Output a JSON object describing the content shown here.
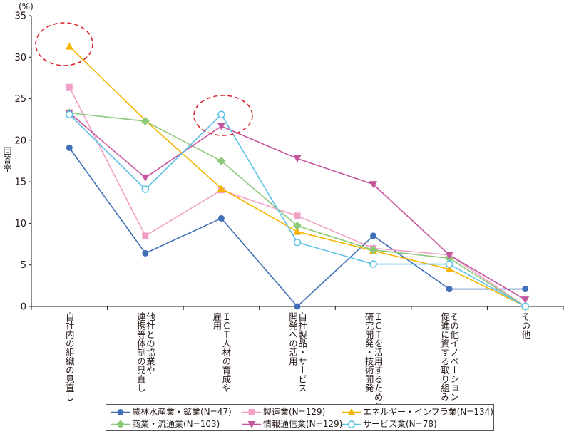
{
  "chart_data": {
    "type": "line",
    "unit_label": "(%)",
    "ylabel": "回答率",
    "ylim": [
      0,
      35
    ],
    "yticks": [
      0,
      5,
      10,
      15,
      20,
      25,
      30,
      35
    ],
    "grid": false,
    "legend_position": "bottom",
    "categories": [
      "自社内の組織の見直し",
      "他社との協業や\n連携等体制の見直し",
      "ＩＣＴ人材の育成や\n雇用",
      "自社製品・サービス\n開発への活用",
      "ＩＣＴを活用するための\n研究開発・技術開発",
      "その他イノベーション\n促進に資する取り組み",
      "その他"
    ],
    "series": [
      {
        "name": "農林水産業・鉱業(N=47)",
        "color": "#3f6fb6",
        "marker": "circle",
        "values": [
          19.1,
          6.4,
          10.6,
          0.0,
          8.5,
          2.1,
          2.1
        ]
      },
      {
        "name": "製造業(N=129)",
        "color": "#f29fc5",
        "marker": "square",
        "values": [
          26.4,
          8.5,
          14.0,
          10.9,
          7.0,
          6.2,
          0.0
        ]
      },
      {
        "name": "エネルギー・インフラ業(N=134)",
        "color": "#f5b400",
        "marker": "triangle",
        "values": [
          31.3,
          22.4,
          14.2,
          9.0,
          6.7,
          4.5,
          0.0
        ]
      },
      {
        "name": "商業・流通業(N=103)",
        "color": "#8cc87a",
        "marker": "diamond",
        "values": [
          23.3,
          22.3,
          17.5,
          9.7,
          6.8,
          5.8,
          0.0
        ]
      },
      {
        "name": "情報通信業(N=129)",
        "color": "#c4569e",
        "marker": "triangle-down",
        "values": [
          23.3,
          15.5,
          21.7,
          17.8,
          14.7,
          6.2,
          0.8
        ]
      },
      {
        "name": "サービス業(N=78)",
        "color": "#5bc1e6",
        "marker": "open-circle",
        "values": [
          23.1,
          14.1,
          23.1,
          7.7,
          5.1,
          5.1,
          0.0
        ]
      }
    ],
    "highlight_color": "#d9252f"
  }
}
